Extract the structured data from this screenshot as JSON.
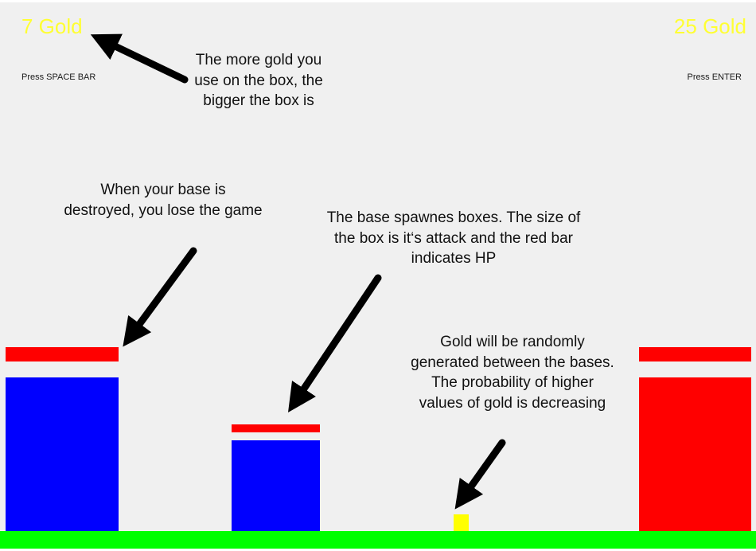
{
  "hud": {
    "left_gold": "7 Gold",
    "right_gold": "25 Gold",
    "left_hint": "Press SPACE BAR",
    "right_hint": "Press ENTER",
    "gold_color": "#ffff33"
  },
  "annotations": {
    "gold_note": "The more gold you use on the box, the bigger the box is",
    "base_note": "When your base is destroyed, you lose the game",
    "spawn_note": "The base spawnes boxes. The size of the box is it‘s attack and the red bar indicates HP",
    "random_note": "Gold will be randomly generated between the bases. The probability of higher values of gold is decreasing"
  },
  "colors": {
    "player": "#0000ff",
    "enemy": "#ff0000",
    "hp_bar": "#ff0000",
    "gold_coin": "#ffff00",
    "ground": "#00ff00",
    "background": "#f0f0f0",
    "arrow": "#000000"
  },
  "icons": {
    "annotation_arrows": "arrow-icon"
  }
}
